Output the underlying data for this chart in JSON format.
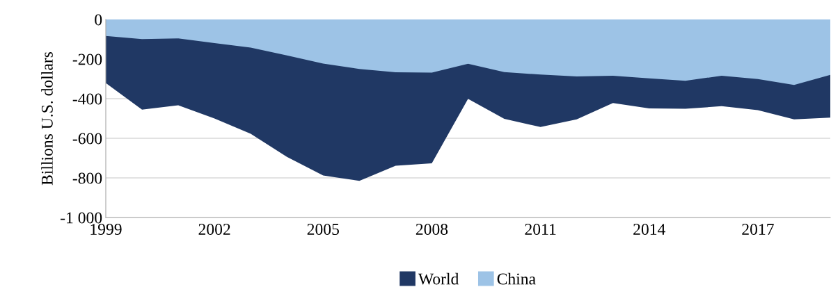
{
  "chart_data": {
    "type": "area",
    "ylabel": "Billions U.S. dollars",
    "x": [
      1999,
      2000,
      2001,
      2002,
      2003,
      2004,
      2005,
      2006,
      2007,
      2008,
      2009,
      2010,
      2011,
      2012,
      2013,
      2014,
      2015,
      2016,
      2017,
      2018,
      2019
    ],
    "series": [
      {
        "name": "World",
        "color": "#203864",
        "values": [
          -321,
          -455,
          -433,
          -500,
          -577,
          -694,
          -788,
          -815,
          -739,
          -726,
          -401,
          -502,
          -543,
          -504,
          -422,
          -449,
          -451,
          -438,
          -458,
          -504,
          -496
        ]
      },
      {
        "name": "China",
        "color": "#9dc3e6",
        "values": [
          -83,
          -99,
          -96,
          -119,
          -142,
          -182,
          -223,
          -250,
          -267,
          -268,
          -224,
          -266,
          -278,
          -288,
          -284,
          -297,
          -310,
          -284,
          -301,
          -331,
          -280
        ]
      }
    ],
    "xlim": [
      1999,
      2019
    ],
    "xticks": [
      1999,
      2002,
      2005,
      2008,
      2011,
      2014,
      2017
    ],
    "ylim": [
      -1000,
      0
    ],
    "yticks": [
      {
        "value": -1000,
        "label": "-1 000"
      },
      -800,
      -600,
      -400,
      -200,
      0
    ],
    "grid": "y",
    "legend": "bottom"
  }
}
